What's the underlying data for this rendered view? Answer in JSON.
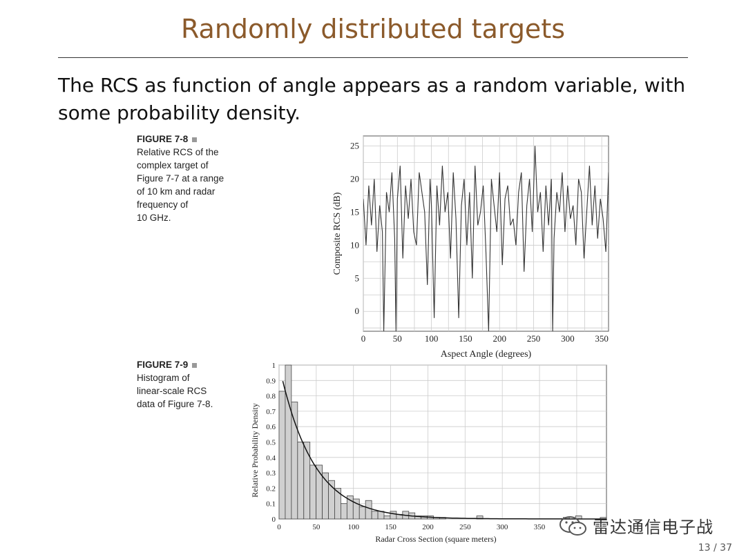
{
  "slide": {
    "title": "Randomly distributed targets",
    "body": "The RCS as function of angle appears as a random variable, with some probability density.",
    "page": "13 / 37",
    "watermark": "雷达通信电子战"
  },
  "fig1_caption": {
    "head": "FIGURE 7-8",
    "lines": [
      "Relative RCS of the",
      "complex target of",
      "Figure 7-7 at a range",
      "of 10 km and radar",
      "frequency of",
      "10 GHz."
    ]
  },
  "fig2_caption": {
    "head": "FIGURE 7-9",
    "lines": [
      "Histogram of",
      "linear-scale RCS",
      "data of Figure 7-8."
    ]
  },
  "chart_data": [
    {
      "type": "line",
      "xlabel": "Aspect Angle (degrees)",
      "ylabel": "Composite RCS (dB)",
      "xlim": [
        0,
        360
      ],
      "ylim": [
        -3,
        26.5
      ],
      "xticks": [
        0,
        50,
        100,
        150,
        200,
        250,
        300,
        350
      ],
      "yticks": [
        0,
        5,
        10,
        15,
        20,
        25
      ],
      "grid": true,
      "x": [
        0,
        4,
        8,
        12,
        16,
        20,
        24,
        28,
        30,
        34,
        38,
        42,
        46,
        48,
        50,
        54,
        58,
        62,
        66,
        70,
        74,
        78,
        82,
        86,
        90,
        94,
        98,
        100,
        104,
        108,
        112,
        116,
        120,
        124,
        128,
        132,
        136,
        140,
        144,
        148,
        152,
        156,
        160,
        164,
        168,
        172,
        176,
        180,
        184,
        188,
        192,
        196,
        200,
        204,
        208,
        212,
        216,
        220,
        224,
        228,
        232,
        236,
        240,
        244,
        248,
        252,
        256,
        260,
        264,
        268,
        272,
        276,
        278,
        280,
        284,
        288,
        292,
        296,
        300,
        304,
        308,
        312,
        316,
        320,
        324,
        328,
        332,
        336,
        340,
        344,
        348,
        352,
        356,
        360
      ],
      "y": [
        17,
        10,
        19,
        13,
        20,
        9,
        16,
        12,
        -3,
        18,
        15,
        21,
        11,
        -3,
        17,
        22,
        8,
        19,
        14,
        20,
        12,
        10,
        21,
        18,
        15,
        4,
        20,
        16,
        -1,
        19,
        13,
        22,
        15,
        18,
        8,
        21,
        14,
        -1,
        16,
        20,
        10,
        18,
        5,
        22,
        13,
        15,
        19,
        9,
        -3,
        20,
        16,
        12,
        21,
        7,
        17,
        19,
        13,
        14,
        10,
        18,
        21,
        6,
        16,
        20,
        12,
        25,
        15,
        18,
        9,
        19,
        13,
        20,
        -3,
        11,
        18,
        15,
        21,
        12,
        19,
        14,
        16,
        10,
        20,
        18,
        8,
        15,
        22,
        13,
        19,
        11,
        17,
        14,
        9,
        21
      ]
    },
    {
      "type": "bar",
      "xlabel": "Radar Cross Section (square meters)",
      "ylabel": "Relative Probability Density",
      "xlim": [
        0,
        440
      ],
      "ylim": [
        0,
        1
      ],
      "xticks": [
        0,
        50,
        100,
        150,
        200,
        250,
        300,
        350
      ],
      "yticks": [
        0,
        0.1,
        0.2,
        0.3,
        0.4,
        0.5,
        0.6,
        0.7,
        0.8,
        0.9,
        1
      ],
      "grid": true,
      "bin_width": 8.3,
      "bin_starts": [
        0,
        8.3,
        16.6,
        24.9,
        33.2,
        41.5,
        49.8,
        58.1,
        66.4,
        74.7,
        83,
        91.3,
        99.6,
        107.9,
        116.2,
        124.5,
        132.8,
        141.1,
        149.4,
        157.7,
        166,
        174.3,
        182.6,
        190.9,
        199.2,
        207.5,
        215.8,
        224.1,
        232.4,
        240.7,
        249,
        257.3,
        265.6,
        273.9,
        282.2,
        290.5,
        298.8,
        307.1,
        315.4,
        323.7,
        332,
        340.3,
        348.6,
        356.9,
        365.2,
        373.5,
        381.8,
        390.1,
        398.4,
        406.7,
        415,
        423.3,
        431.6
      ],
      "values": [
        0.83,
        1.0,
        0.76,
        0.5,
        0.5,
        0.35,
        0.35,
        0.3,
        0.25,
        0.2,
        0.1,
        0.15,
        0.13,
        0.08,
        0.12,
        0.05,
        0.05,
        0.02,
        0.05,
        0.03,
        0.05,
        0.04,
        0.02,
        0.02,
        0.02,
        0.01,
        0.01,
        0,
        0,
        0,
        0,
        0,
        0.02,
        0,
        0,
        0,
        0,
        0,
        0,
        0,
        0,
        0,
        0,
        0,
        0,
        0,
        0.01,
        0,
        0.02,
        0,
        0,
        0,
        0.01
      ],
      "fit_curve": {
        "type": "exponential",
        "amplitude": 1.0,
        "decay": 0.022
      }
    }
  ]
}
